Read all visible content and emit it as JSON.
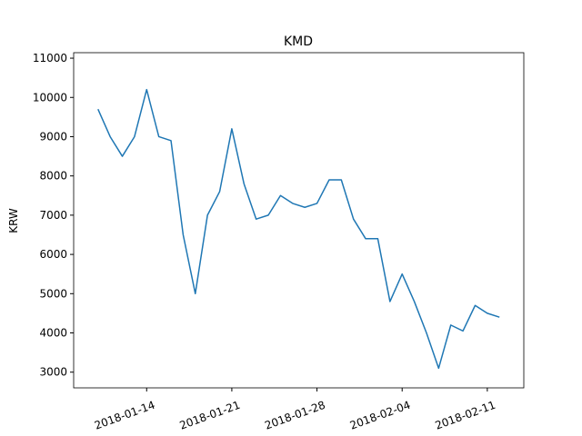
{
  "chart_data": {
    "type": "line",
    "title": "KMD",
    "y_label": "KRW",
    "x": [
      "2018-01-10",
      "2018-01-11",
      "2018-01-12",
      "2018-01-13",
      "2018-01-14",
      "2018-01-15",
      "2018-01-16",
      "2018-01-17",
      "2018-01-18",
      "2018-01-19",
      "2018-01-20",
      "2018-01-21",
      "2018-01-22",
      "2018-01-23",
      "2018-01-24",
      "2018-01-25",
      "2018-01-26",
      "2018-01-27",
      "2018-01-28",
      "2018-01-29",
      "2018-01-30",
      "2018-01-31",
      "2018-02-01",
      "2018-02-02",
      "2018-02-03",
      "2018-02-04",
      "2018-02-05",
      "2018-02-06",
      "2018-02-07",
      "2018-02-08",
      "2018-02-09",
      "2018-02-10",
      "2018-02-11",
      "2018-02-12"
    ],
    "series": [
      {
        "name": "KMD",
        "color": "#1f77b4",
        "values": [
          9700,
          9000,
          8500,
          9000,
          10200,
          9000,
          8900,
          6500,
          5000,
          7000,
          7600,
          9200,
          7800,
          6900,
          7000,
          7500,
          7300,
          7200,
          7300,
          7900,
          7900,
          6900,
          6400,
          6400,
          4800,
          5500,
          4800,
          4000,
          3100,
          4200,
          4050,
          4700,
          4500,
          4400
        ]
      }
    ],
    "xlim": [
      "2018-01-08",
      "2018-02-14"
    ],
    "xticks": [
      "2018-01-14",
      "2018-01-21",
      "2018-01-28",
      "2018-02-04",
      "2018-02-11"
    ],
    "ylim": [
      2600,
      11140
    ],
    "yticks": [
      3000,
      4000,
      5000,
      6000,
      7000,
      8000,
      9000,
      10000,
      11000
    ],
    "grid": false
  }
}
